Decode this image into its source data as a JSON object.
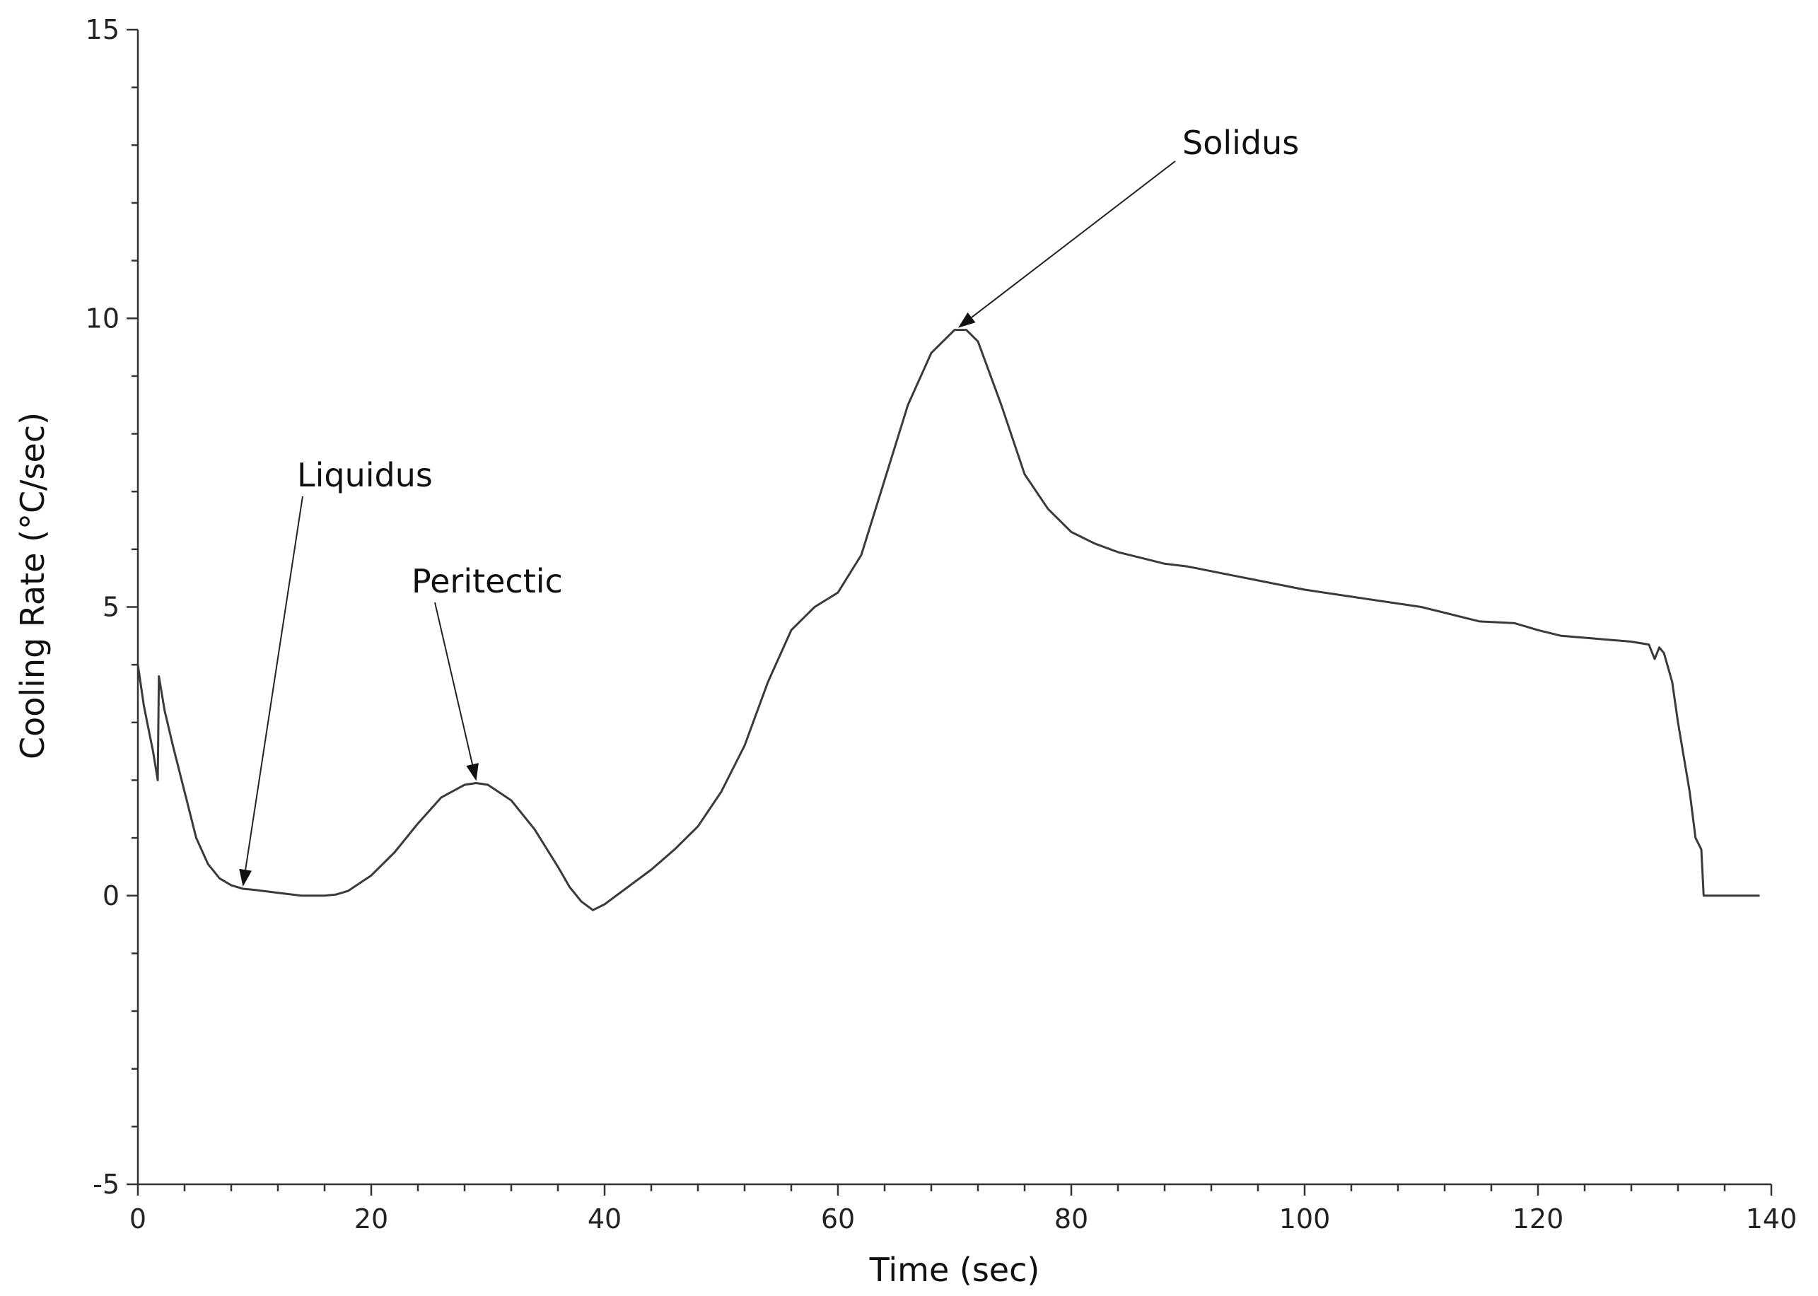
{
  "chart_data": {
    "type": "line",
    "title": "",
    "xlabel": "Time (sec)",
    "ylabel": "Cooling Rate (°C/sec)",
    "xlim": [
      0,
      140
    ],
    "ylim": [
      -5,
      15
    ],
    "x_ticks": [
      0,
      20,
      40,
      60,
      80,
      100,
      120,
      140
    ],
    "y_ticks": [
      -5,
      0,
      5,
      10,
      15
    ],
    "grid": false,
    "series": [
      {
        "color": "#3a3a3a",
        "x": [
          0,
          0.5,
          0.9,
          1.3,
          1.7,
          1.8,
          2.3,
          3.0,
          4.0,
          5.0,
          6.0,
          7.0,
          8.0,
          9.0,
          10.0,
          12.0,
          14.0,
          16.0,
          17.0,
          18.0,
          20.0,
          22.0,
          24.0,
          26.0,
          28.0,
          29.0,
          30.0,
          32.0,
          34.0,
          36.0,
          37.0,
          38.0,
          39.0,
          40.0,
          42.0,
          44.0,
          46.0,
          48.0,
          50.0,
          52.0,
          54.0,
          56.0,
          58.0,
          60.0,
          62.0,
          64.0,
          66.0,
          68.0,
          70.0,
          71.0,
          72.0,
          74.0,
          76.0,
          78.0,
          80.0,
          82.0,
          84.0,
          86.0,
          88.0,
          90.0,
          95.0,
          100.0,
          105.0,
          110.0,
          115.0,
          118.0,
          120.0,
          122.0,
          125.0,
          128.0,
          129.5,
          130.0,
          130.4,
          130.8,
          131.5,
          132.0,
          133.0,
          133.5,
          134.0,
          134.2,
          136.0,
          139.0
        ],
        "y": [
          4.0,
          3.3,
          2.9,
          2.5,
          2.0,
          3.8,
          3.2,
          2.6,
          1.8,
          1.0,
          0.55,
          0.3,
          0.18,
          0.12,
          0.1,
          0.05,
          0.0,
          0.0,
          0.02,
          0.08,
          0.35,
          0.75,
          1.25,
          1.7,
          1.92,
          1.95,
          1.92,
          1.65,
          1.15,
          0.5,
          0.15,
          -0.1,
          -0.25,
          -0.15,
          0.15,
          0.45,
          0.8,
          1.2,
          1.8,
          2.6,
          3.7,
          4.6,
          5.0,
          5.25,
          5.9,
          7.2,
          8.5,
          9.4,
          9.8,
          9.8,
          9.6,
          8.5,
          7.3,
          6.7,
          6.3,
          6.1,
          5.95,
          5.85,
          5.75,
          5.7,
          5.5,
          5.3,
          5.15,
          5.0,
          4.75,
          4.72,
          4.6,
          4.5,
          4.45,
          4.4,
          4.35,
          4.1,
          4.3,
          4.2,
          3.7,
          3.0,
          1.8,
          1.0,
          0.8,
          0.0,
          0.0,
          0.0
        ]
      }
    ],
    "annotations": [
      {
        "text": "Liquidus",
        "target": [
          9,
          0.12
        ]
      },
      {
        "text": "Peritectic",
        "target": [
          29,
          1.95
        ]
      },
      {
        "text": "Solidus",
        "target": [
          70.3,
          9.8
        ]
      }
    ]
  }
}
